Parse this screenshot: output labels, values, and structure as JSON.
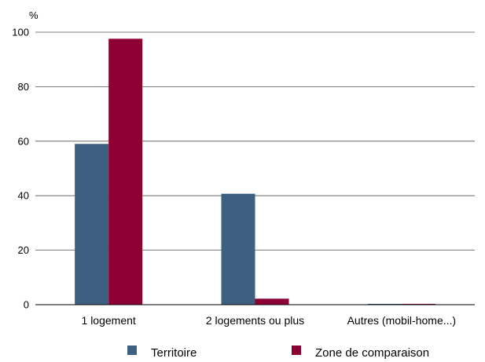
{
  "chart_data": {
    "type": "bar",
    "y_unit_label": "%",
    "categories": [
      "1 logement",
      "2 logements ou plus",
      "Autres (mobil-home...)"
    ],
    "series": [
      {
        "name": "Territoire",
        "color": "#3d5f80",
        "values": [
          59.0,
          40.7,
          0.3
        ]
      },
      {
        "name": "Zone de comparaison",
        "color": "#8c0033",
        "values": [
          97.6,
          2.2,
          0.3
        ]
      }
    ],
    "ylim": [
      0,
      100
    ],
    "yticks": [
      0,
      20,
      40,
      60,
      80,
      100
    ],
    "grid": true,
    "legend_position": "bottom"
  }
}
